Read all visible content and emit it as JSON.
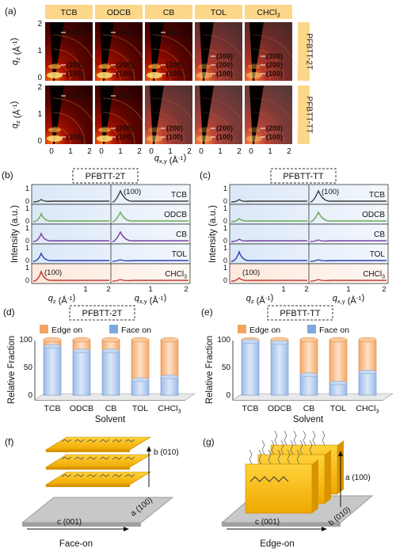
{
  "panels": {
    "a": "(a)",
    "b": "(b)",
    "c": "(c)",
    "d": "(d)",
    "e": "(e)",
    "f": "(f)",
    "g": "(g)"
  },
  "solvents": [
    "TCB",
    "ODCB",
    "CB",
    "TOL",
    "CHCl3"
  ],
  "polymers": [
    "PFBTT-2T",
    "PFBTT-TT"
  ],
  "panel_a": {
    "ylabel": "qz (Å⁻¹)",
    "xlabel": "qx,y (Å⁻¹)",
    "y_ticks": [
      "0",
      "1",
      "2"
    ],
    "x_ticks": [
      "0",
      "1",
      "2"
    ],
    "peaks": {
      "row1": [
        [
          "(010)",
          "(200)",
          "(100)"
        ],
        [
          "(010)",
          "(200)",
          "(100)"
        ],
        [
          "(010)",
          "(200)",
          "(100)"
        ],
        [
          "(300)",
          "(200)",
          "(100)"
        ],
        [
          "(300)",
          "(200)",
          "(100)"
        ]
      ],
      "row2": [
        [
          "(010)",
          "(100)"
        ],
        [
          "(010)",
          "(200)",
          "(100)"
        ],
        [
          "(200)",
          "(100)"
        ],
        [
          "(200)",
          "(100)"
        ],
        [
          "(200)",
          "(100)"
        ]
      ]
    }
  },
  "profiles": {
    "ylabel": "Intensity (a.u.)",
    "xlabel_z": "qz (Å⁻¹)",
    "xlabel_xy": "qx,y (Å⁻¹)",
    "y_ticks": [
      "1",
      "0"
    ],
    "x_ticks_z": [
      "1",
      "2"
    ],
    "x_ticks_xy": [
      "1",
      "2"
    ],
    "rows": [
      "TCB",
      "ODCB",
      "CB",
      "TOL",
      "CHCl3"
    ],
    "peak_label": "(100)",
    "colors": [
      "#3a3a3a",
      "#6aa84f",
      "#7b3fa0",
      "#2a3fb0",
      "#c0392b"
    ]
  },
  "fraction": {
    "ylabel": "Relative Fraction",
    "xlabel": "Solvent",
    "y_ticks": [
      "0",
      "50",
      "100"
    ],
    "legend_edge": "Edge on",
    "legend_face": "Face on",
    "color_edge": "#f4a460",
    "color_face": "#7fa7e0"
  },
  "chart_data": [
    {
      "type": "bar",
      "title": "PFBTT-2T",
      "categories": [
        "TCB",
        "ODCB",
        "CB",
        "TOL",
        "CHCl3"
      ],
      "series": [
        {
          "name": "Face on",
          "values": [
            88,
            80,
            80,
            28,
            33
          ]
        },
        {
          "name": "Edge on",
          "values": [
            12,
            20,
            20,
            72,
            67
          ]
        }
      ],
      "xlabel": "Solvent",
      "ylabel": "Relative Fraction",
      "ylim": [
        0,
        100
      ]
    },
    {
      "type": "bar",
      "title": "PFBTT-TT",
      "categories": [
        "TCB",
        "ODCB",
        "CB",
        "TOL",
        "CHCl3"
      ],
      "series": [
        {
          "name": "Face on",
          "values": [
            97,
            95,
            37,
            22,
            42
          ]
        },
        {
          "name": "Edge on",
          "values": [
            3,
            5,
            63,
            78,
            58
          ]
        }
      ],
      "xlabel": "Solvent",
      "ylabel": "Relative Fraction",
      "ylim": [
        0,
        100
      ]
    }
  ],
  "schematic": {
    "f_caption": "Face-on",
    "g_caption": "Edge-on",
    "f_axes": {
      "b": "b (010)",
      "c": "c (001)",
      "a": "a (100)"
    },
    "g_axes": {
      "a": "a (100)",
      "c": "c (001)",
      "b": "b (010)"
    }
  }
}
